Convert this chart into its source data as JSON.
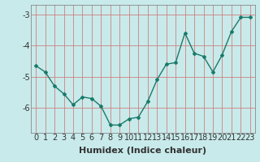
{
  "x": [
    0,
    1,
    2,
    3,
    4,
    5,
    6,
    7,
    8,
    9,
    10,
    11,
    12,
    13,
    14,
    15,
    16,
    17,
    18,
    19,
    20,
    21,
    22,
    23
  ],
  "y": [
    -4.65,
    -4.85,
    -5.3,
    -5.55,
    -5.9,
    -5.65,
    -5.7,
    -5.95,
    -6.55,
    -6.55,
    -6.35,
    -6.3,
    -5.8,
    -5.1,
    -4.6,
    -4.55,
    -3.6,
    -4.25,
    -4.35,
    -4.85,
    -4.3,
    -3.55,
    -3.1,
    -3.1
  ],
  "line_color": "#1a7a6a",
  "marker": "D",
  "markersize": 2.0,
  "linewidth": 1.0,
  "xlabel": "Humidex (Indice chaleur)",
  "xlim": [
    -0.5,
    23.5
  ],
  "ylim": [
    -6.8,
    -2.7
  ],
  "yticks": [
    -6,
    -5,
    -4,
    -3
  ],
  "xticks": [
    0,
    1,
    2,
    3,
    4,
    5,
    6,
    7,
    8,
    9,
    10,
    11,
    12,
    13,
    14,
    15,
    16,
    17,
    18,
    19,
    20,
    21,
    22,
    23
  ],
  "bg_color": "#c8eaea",
  "grid_color": "#d08080",
  "tick_color": "#333333",
  "xlabel_fontsize": 8,
  "tick_fontsize": 7,
  "spine_color": "#888888"
}
